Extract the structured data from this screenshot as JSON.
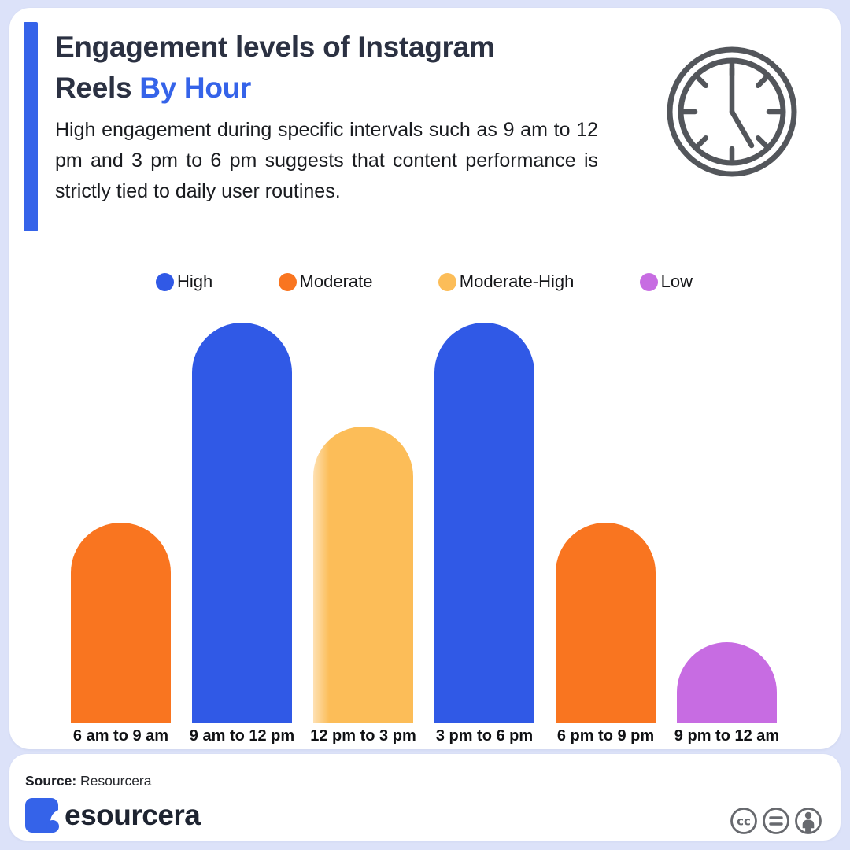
{
  "page": {
    "background": "#DCE2F9",
    "card_background": "#FFFFFF"
  },
  "header": {
    "accent_color": "#3563E9",
    "title_line1": "Engagement levels of Instagram",
    "title_line2_prefix": "Reels",
    "title_line2_highlight": "By Hour",
    "highlight_color": "#3563E9",
    "description": "High engagement during specific intervals such as 9 am to 12 pm and 3 pm to 6 pm suggests that content performance is strictly tied to daily user routines.",
    "clock_icon": "clock-icon",
    "clock_time_shown": "5:00",
    "clock_color": "#53565B"
  },
  "legend": {
    "position": "top",
    "items": [
      {
        "label": "High",
        "color": "#3059E6"
      },
      {
        "label": "Moderate",
        "color": "#F97520"
      },
      {
        "label": "Moderate-High",
        "color": "#FCBD58"
      },
      {
        "label": "Low",
        "color": "#C76CE2"
      }
    ]
  },
  "chart_data": {
    "type": "bar",
    "title": "Engagement levels of Instagram Reels By Hour",
    "categories": [
      "6 am to 9 am",
      "9 am to 12 pm",
      "12 pm to 3 pm",
      "3 pm to 6 pm",
      "6 pm to 9 pm",
      "9 pm to 12 am"
    ],
    "series": [
      {
        "name": "Engagement level",
        "values": [
          "Moderate",
          "High",
          "Moderate-High",
          "High",
          "Moderate",
          "Low"
        ],
        "relative_height_pct": [
          50,
          100,
          74,
          100,
          50,
          20
        ]
      }
    ],
    "colors": {
      "High": "#3059E6",
      "Moderate": "#F97520",
      "Moderate-High": "#FCBD58",
      "Low": "#C76CE2"
    },
    "xlabel": "",
    "ylabel": "",
    "grid": false,
    "bar_style": "rounded-top",
    "legend_position": "top"
  },
  "footer_source": {
    "label": "Source:",
    "value": "Resourcera"
  },
  "brand_bar": {
    "brand_suffix": "esourcera",
    "brand_color": "#3563E9",
    "license_icons": [
      "cc-icon",
      "equals-icon",
      "person-icon"
    ]
  }
}
